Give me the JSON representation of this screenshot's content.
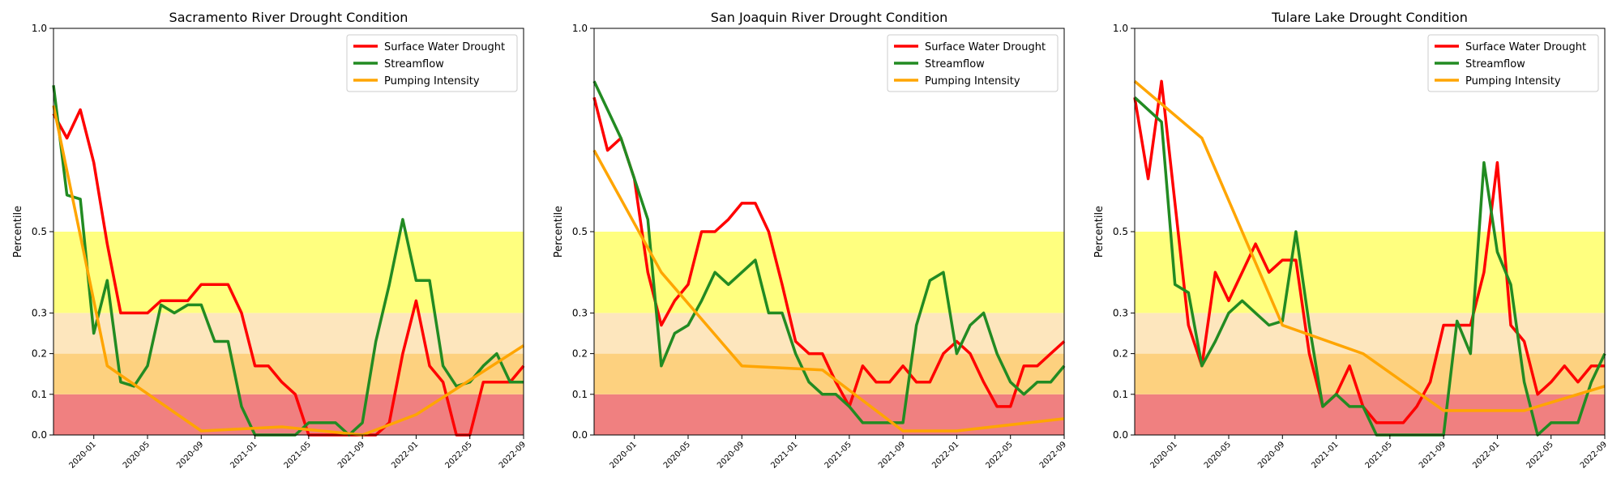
{
  "chart_data": [
    {
      "type": "line",
      "title": "Sacramento River Drought Condition",
      "xlabel": "",
      "ylabel": "Percentile",
      "ylim": [
        0,
        1
      ],
      "yticks": [
        "0.0",
        "0.1",
        "0.2",
        "0.3",
        "0.5",
        "1.0"
      ],
      "xticks": [
        "2020-01",
        "2020-05",
        "2020-09",
        "2021-01",
        "2021-05",
        "2021-09",
        "2022-01",
        "2022-05",
        "2022-09"
      ],
      "xlim": [
        "2019-10",
        "2022-09"
      ],
      "legend_position": "top-right",
      "bands": [
        {
          "from": 0.0,
          "to": 0.1,
          "color": "#f08080"
        },
        {
          "from": 0.1,
          "to": 0.2,
          "color": "#fdd17f"
        },
        {
          "from": 0.2,
          "to": 0.3,
          "color": "#fde6bd"
        },
        {
          "from": 0.3,
          "to": 0.5,
          "color": "#ffff7f"
        }
      ],
      "x": [
        "2019-10",
        "2019-11",
        "2019-12",
        "2020-01",
        "2020-02",
        "2020-03",
        "2020-04",
        "2020-05",
        "2020-06",
        "2020-07",
        "2020-08",
        "2020-09",
        "2020-10",
        "2020-11",
        "2020-12",
        "2021-01",
        "2021-02",
        "2021-03",
        "2021-04",
        "2021-05",
        "2021-06",
        "2021-07",
        "2021-08",
        "2021-09",
        "2021-10",
        "2021-11",
        "2021-12",
        "2022-01",
        "2022-02",
        "2022-03",
        "2022-04",
        "2022-05",
        "2022-06",
        "2022-07",
        "2022-08",
        "2022-09"
      ],
      "series": [
        {
          "name": "Surface Water Drought",
          "color": "#ff0000",
          "values": [
            0.79,
            0.73,
            0.8,
            0.67,
            0.47,
            0.3,
            0.3,
            0.3,
            0.33,
            0.33,
            0.33,
            0.37,
            0.37,
            0.37,
            0.3,
            0.17,
            0.17,
            0.13,
            0.1,
            0.0,
            0.0,
            0.0,
            0.0,
            0.0,
            0.0,
            0.03,
            0.2,
            0.33,
            0.17,
            0.13,
            0.0,
            0.0,
            0.13,
            0.13,
            0.13,
            0.17
          ]
        },
        {
          "name": "Streamflow",
          "color": "#228b22",
          "values": [
            0.86,
            0.59,
            0.58,
            0.25,
            0.38,
            0.13,
            0.12,
            0.17,
            0.32,
            0.3,
            0.32,
            0.32,
            0.23,
            0.23,
            0.07,
            0.0,
            0.0,
            0.0,
            0.0,
            0.03,
            0.03,
            0.03,
            0.0,
            0.03,
            0.23,
            0.37,
            0.53,
            0.38,
            0.38,
            0.17,
            0.12,
            0.13,
            0.17,
            0.2,
            0.13,
            0.13
          ]
        },
        {
          "name": "Pumping Intensity",
          "color": "#ffa500",
          "x": [
            "2019-10",
            "2020-02",
            "2020-09",
            "2021-03",
            "2021-09",
            "2022-01",
            "2022-09"
          ],
          "values": [
            0.81,
            0.17,
            0.01,
            0.02,
            0.0,
            0.05,
            0.22
          ]
        }
      ]
    },
    {
      "type": "line",
      "title": "San Joaquin River Drought Condition",
      "xlabel": "",
      "ylabel": "Percentile",
      "ylim": [
        0,
        1
      ],
      "yticks": [
        "0.0",
        "0.1",
        "0.2",
        "0.3",
        "0.5",
        "1.0"
      ],
      "xticks": [
        "2020-01",
        "2020-05",
        "2020-09",
        "2021-01",
        "2021-05",
        "2021-09",
        "2022-01",
        "2022-05",
        "2022-09"
      ],
      "xlim": [
        "2019-10",
        "2022-09"
      ],
      "legend_position": "top-right",
      "bands": [
        {
          "from": 0.0,
          "to": 0.1,
          "color": "#f08080"
        },
        {
          "from": 0.1,
          "to": 0.2,
          "color": "#fdd17f"
        },
        {
          "from": 0.2,
          "to": 0.3,
          "color": "#fde6bd"
        },
        {
          "from": 0.3,
          "to": 0.5,
          "color": "#ffff7f"
        }
      ],
      "x": [
        "2019-10",
        "2019-11",
        "2019-12",
        "2020-01",
        "2020-02",
        "2020-03",
        "2020-04",
        "2020-05",
        "2020-06",
        "2020-07",
        "2020-08",
        "2020-09",
        "2020-10",
        "2020-11",
        "2020-12",
        "2021-01",
        "2021-02",
        "2021-03",
        "2021-04",
        "2021-05",
        "2021-06",
        "2021-07",
        "2021-08",
        "2021-09",
        "2021-10",
        "2021-11",
        "2021-12",
        "2022-01",
        "2022-02",
        "2022-03",
        "2022-04",
        "2022-05",
        "2022-06",
        "2022-07",
        "2022-08",
        "2022-09"
      ],
      "series": [
        {
          "name": "Surface Water Drought",
          "color": "#ff0000",
          "values": [
            0.83,
            0.7,
            0.73,
            0.63,
            0.4,
            0.27,
            0.33,
            0.37,
            0.5,
            0.5,
            0.53,
            0.57,
            0.57,
            0.5,
            0.37,
            0.23,
            0.2,
            0.2,
            0.13,
            0.07,
            0.17,
            0.13,
            0.13,
            0.17,
            0.13,
            0.13,
            0.2,
            0.23,
            0.2,
            0.13,
            0.07,
            0.07,
            0.17,
            0.17,
            0.2,
            0.23
          ]
        },
        {
          "name": "Streamflow",
          "color": "#228b22",
          "values": [
            0.87,
            0.8,
            0.73,
            0.63,
            0.53,
            0.17,
            0.25,
            0.27,
            0.33,
            0.4,
            0.37,
            0.4,
            0.43,
            0.3,
            0.3,
            0.2,
            0.13,
            0.1,
            0.1,
            0.07,
            0.03,
            0.03,
            0.03,
            0.03,
            0.27,
            0.38,
            0.4,
            0.2,
            0.27,
            0.3,
            0.2,
            0.13,
            0.1,
            0.13,
            0.13,
            0.17
          ]
        },
        {
          "name": "Pumping Intensity",
          "color": "#ffa500",
          "x": [
            "2019-10",
            "2020-03",
            "2020-09",
            "2021-03",
            "2021-09",
            "2022-01",
            "2022-09"
          ],
          "values": [
            0.7,
            0.4,
            0.17,
            0.16,
            0.01,
            0.01,
            0.04
          ]
        }
      ]
    },
    {
      "type": "line",
      "title": "Tulare Lake Drought Condition",
      "xlabel": "",
      "ylabel": "Percentile",
      "ylim": [
        0,
        1
      ],
      "yticks": [
        "0.0",
        "0.1",
        "0.2",
        "0.3",
        "0.5",
        "1.0"
      ],
      "xticks": [
        "2020-01",
        "2020-05",
        "2020-09",
        "2021-01",
        "2021-05",
        "2021-09",
        "2022-01",
        "2022-05",
        "2022-09"
      ],
      "xlim": [
        "2019-10",
        "2022-09"
      ],
      "legend_position": "top-right",
      "bands": [
        {
          "from": 0.0,
          "to": 0.1,
          "color": "#f08080"
        },
        {
          "from": 0.1,
          "to": 0.2,
          "color": "#fdd17f"
        },
        {
          "from": 0.2,
          "to": 0.3,
          "color": "#fde6bd"
        },
        {
          "from": 0.3,
          "to": 0.5,
          "color": "#ffff7f"
        }
      ],
      "x": [
        "2019-10",
        "2019-11",
        "2019-12",
        "2020-01",
        "2020-02",
        "2020-03",
        "2020-04",
        "2020-05",
        "2020-06",
        "2020-07",
        "2020-08",
        "2020-09",
        "2020-10",
        "2020-11",
        "2020-12",
        "2021-01",
        "2021-02",
        "2021-03",
        "2021-04",
        "2021-05",
        "2021-06",
        "2021-07",
        "2021-08",
        "2021-09",
        "2021-10",
        "2021-11",
        "2021-12",
        "2022-01",
        "2022-02",
        "2022-03",
        "2022-04",
        "2022-05",
        "2022-06",
        "2022-07",
        "2022-08",
        "2022-09"
      ],
      "series": [
        {
          "name": "Surface Water Drought",
          "color": "#ff0000",
          "values": [
            0.83,
            0.63,
            0.87,
            0.57,
            0.27,
            0.17,
            0.4,
            0.33,
            0.4,
            0.47,
            0.4,
            0.43,
            0.43,
            0.2,
            0.07,
            0.1,
            0.17,
            0.07,
            0.03,
            0.03,
            0.03,
            0.07,
            0.13,
            0.27,
            0.27,
            0.27,
            0.4,
            0.67,
            0.27,
            0.23,
            0.1,
            0.13,
            0.17,
            0.13,
            0.17,
            0.17
          ]
        },
        {
          "name": "Streamflow",
          "color": "#228b22",
          "values": [
            0.83,
            0.8,
            0.77,
            0.37,
            0.35,
            0.17,
            0.23,
            0.3,
            0.33,
            0.3,
            0.27,
            0.28,
            0.5,
            0.27,
            0.07,
            0.1,
            0.07,
            0.07,
            0.0,
            0.0,
            0.0,
            0.0,
            0.0,
            0.0,
            0.28,
            0.2,
            0.67,
            0.45,
            0.37,
            0.13,
            0.0,
            0.03,
            0.03,
            0.03,
            0.13,
            0.2
          ]
        },
        {
          "name": "Pumping Intensity",
          "color": "#ffa500",
          "x": [
            "2019-10",
            "2020-03",
            "2020-09",
            "2021-03",
            "2021-09",
            "2022-03",
            "2022-09"
          ],
          "values": [
            0.87,
            0.73,
            0.27,
            0.2,
            0.06,
            0.06,
            0.12
          ]
        }
      ]
    }
  ]
}
